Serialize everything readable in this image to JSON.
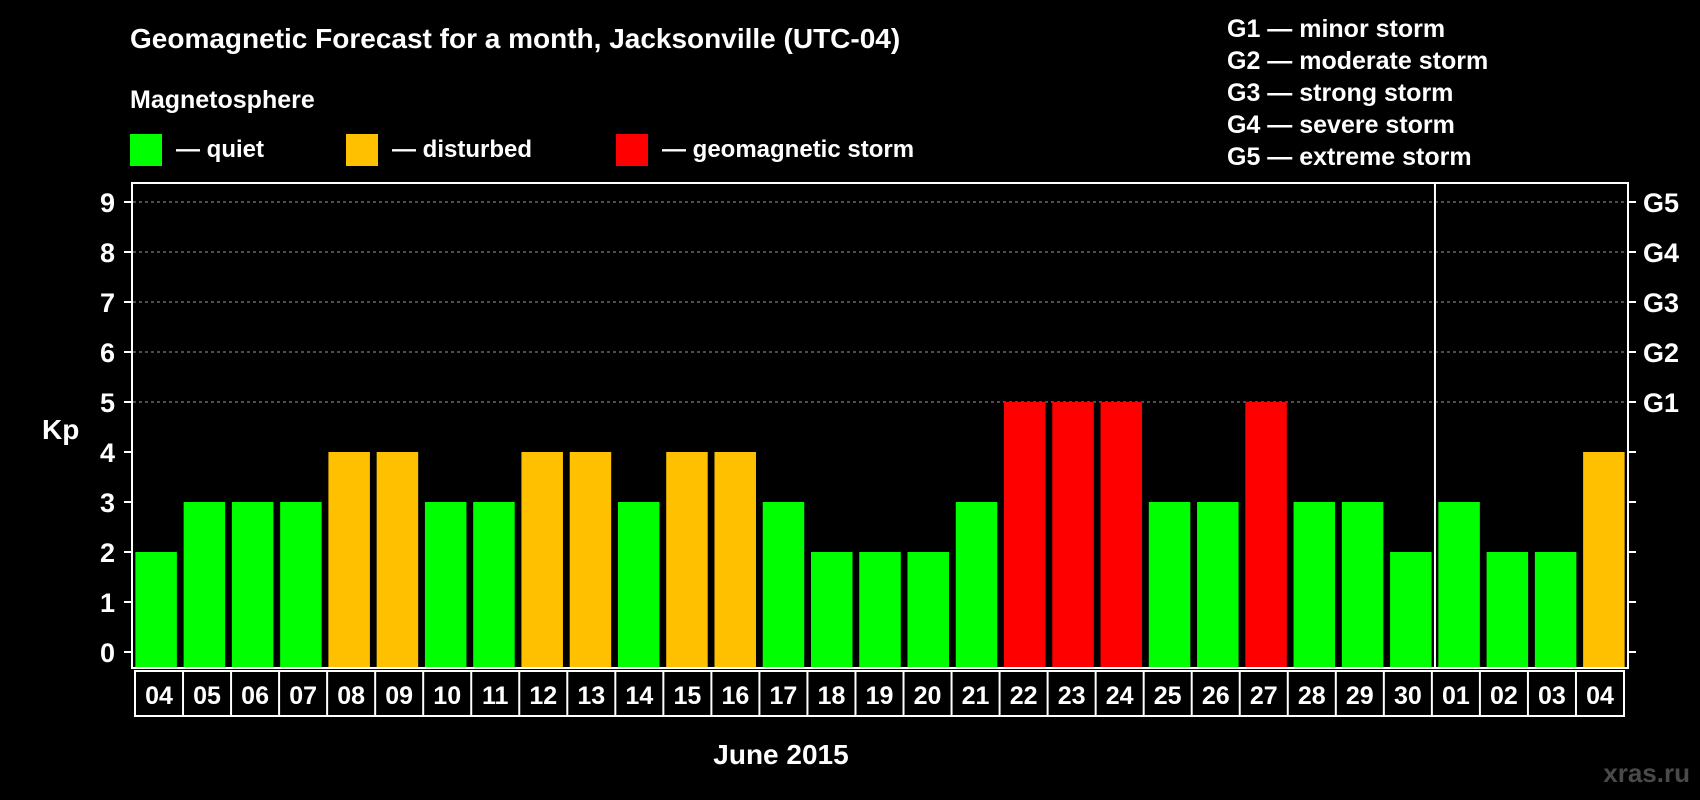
{
  "chart_data": {
    "type": "bar",
    "title": "Geomagnetic Forecast for a month, Jacksonville (UTC-04)",
    "legend_title": "Magnetosphere",
    "legend": [
      {
        "label": "— quiet",
        "color": "#00ff00"
      },
      {
        "label": "— disturbed",
        "color": "#ffc000"
      },
      {
        "label": "— geomagnetic storm",
        "color": "#ff0000"
      }
    ],
    "storm_scale": [
      "G1 — minor storm",
      "G2 — moderate storm",
      "G3 — strong storm",
      "G4 — severe storm",
      "G5 — extreme storm"
    ],
    "ylabel": "Kp",
    "xlabel": "June 2015",
    "ylim": [
      0,
      9
    ],
    "yticks": [
      "0",
      "1",
      "2",
      "3",
      "4",
      "5",
      "6",
      "7",
      "8",
      "9"
    ],
    "right_ticks": [
      {
        "value": 5,
        "label": "G1"
      },
      {
        "value": 6,
        "label": "G2"
      },
      {
        "value": 7,
        "label": "G3"
      },
      {
        "value": 8,
        "label": "G4"
      },
      {
        "value": 9,
        "label": "G5"
      }
    ],
    "categories": [
      "04",
      "05",
      "06",
      "07",
      "08",
      "09",
      "10",
      "11",
      "12",
      "13",
      "14",
      "15",
      "16",
      "17",
      "18",
      "19",
      "20",
      "21",
      "22",
      "23",
      "24",
      "25",
      "26",
      "27",
      "28",
      "29",
      "30",
      "01",
      "02",
      "03",
      "04"
    ],
    "values": [
      2,
      3,
      3,
      3,
      4,
      4,
      3,
      3,
      4,
      4,
      3,
      4,
      4,
      3,
      2,
      2,
      2,
      3,
      5,
      5,
      5,
      3,
      3,
      5,
      3,
      3,
      2,
      3,
      2,
      2,
      4
    ],
    "colors": {
      "quiet": "#00ff00",
      "disturbed": "#ffc000",
      "storm": "#ff0000"
    },
    "month_divider_after": "30",
    "grid": "dashed-horizontal"
  },
  "watermark": "xras.ru"
}
